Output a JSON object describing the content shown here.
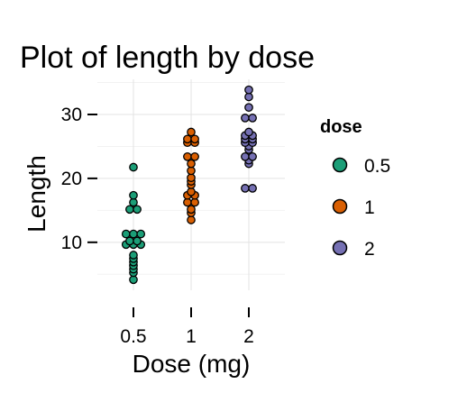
{
  "chart_data": {
    "type": "scatter",
    "subtype": "dotplot",
    "title": "Plot of length  by dose",
    "xlabel": "Dose (mg)",
    "ylabel": "Length",
    "categories": [
      "0.5",
      "1",
      "2"
    ],
    "ylim": [
      2.5,
      35.5
    ],
    "yticks": [
      10,
      20,
      30
    ],
    "grid": true,
    "legend": {
      "title": "dose",
      "position": "right"
    },
    "series": [
      {
        "name": "0.5",
        "color": "#1b9e77",
        "values": [
          4.2,
          5.2,
          5.8,
          6.4,
          7.0,
          7.3,
          8.2,
          9.4,
          9.7,
          9.7,
          10.0,
          10.0,
          11.2,
          11.2,
          11.5,
          15.2,
          15.2,
          16.5,
          17.6,
          21.5
        ]
      },
      {
        "name": "1",
        "color": "#d95f02",
        "values": [
          13.6,
          14.5,
          15.2,
          16.5,
          16.5,
          17.3,
          17.3,
          17.7,
          18.8,
          19.7,
          20.0,
          21.2,
          22.5,
          23.3,
          23.6,
          25.5,
          25.8,
          26.4,
          26.4,
          27.3
        ]
      },
      {
        "name": "2",
        "color": "#7570b3",
        "values": [
          18.5,
          22.4,
          23.0,
          23.3,
          23.6,
          24.5,
          24.8,
          25.5,
          25.5,
          26.4,
          26.4,
          26.7,
          27.3,
          29.4,
          29.5,
          30.9,
          32.5,
          33.9,
          18.5,
          26.7
        ]
      }
    ]
  }
}
